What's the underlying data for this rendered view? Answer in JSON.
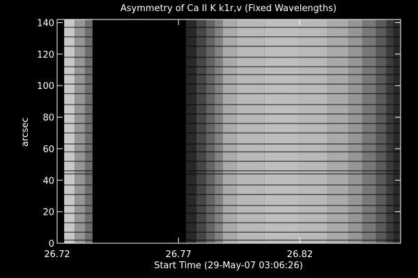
{
  "chart_data": {
    "type": "image",
    "title": "Asymmetry of Ca II K k1r,v (Fixed Wavelengths)",
    "x_label": "Start Time (29-May-07 03:06:26)",
    "y_label": "arcsec",
    "colormap": "gray",
    "xlim": [
      26.72,
      26.8615
    ],
    "ylim": [
      0,
      142
    ],
    "xticks": [
      {
        "value": 26.72,
        "label": "26.72"
      },
      {
        "value": 26.77,
        "label": "26.77"
      },
      {
        "value": 26.82,
        "label": "26.82"
      }
    ],
    "yticks": [
      0,
      20,
      40,
      60,
      80,
      100,
      120,
      140
    ],
    "column_edges": [
      26.72,
      26.7229,
      26.7272,
      26.7315,
      26.7346,
      26.7731,
      26.7774,
      26.7814,
      26.7849,
      26.7883,
      26.794,
      26.8055,
      26.8199,
      26.8314,
      26.84,
      26.8457,
      26.8514,
      26.8557,
      26.8586,
      26.8615
    ],
    "column_values": [
      0,
      200,
      150,
      110,
      0,
      40,
      70,
      100,
      130,
      170,
      185,
      190,
      185,
      170,
      150,
      120,
      90,
      60,
      40
    ],
    "dark_rows": [
      2,
      7,
      13,
      19,
      24,
      31,
      37,
      44,
      46,
      52,
      58,
      63,
      70,
      76,
      82,
      88,
      95,
      101,
      107,
      112,
      118,
      125,
      131,
      137
    ]
  }
}
